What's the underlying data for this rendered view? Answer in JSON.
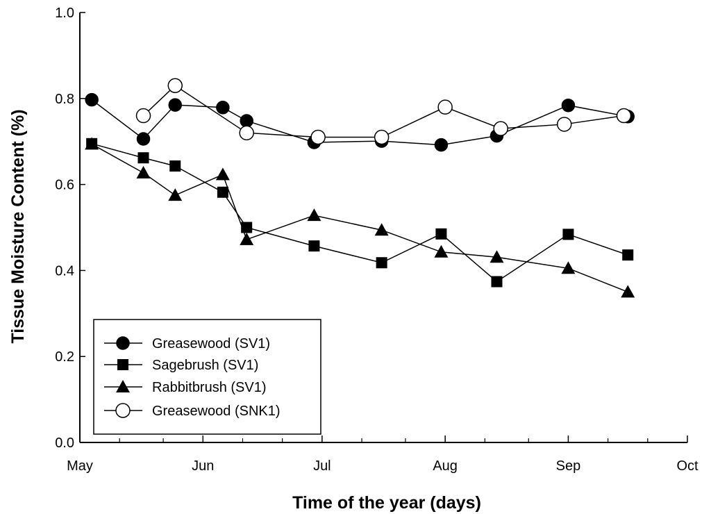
{
  "chart_data": {
    "type": "line",
    "title": "",
    "xlabel": "Time of the year (days)",
    "ylabel": "Tissue Moisture Content (%)",
    "xlim": [
      121,
      274
    ],
    "ylim": [
      0.0,
      1.0
    ],
    "x_ticks": [
      {
        "value": 121,
        "label": "May"
      },
      {
        "value": 152,
        "label": "Jun"
      },
      {
        "value": 182,
        "label": "Jul"
      },
      {
        "value": 213,
        "label": "Aug"
      },
      {
        "value": 244,
        "label": "Sep"
      },
      {
        "value": 274,
        "label": "Oct"
      }
    ],
    "x_minor_ticks": [
      131,
      142,
      162,
      172,
      192,
      203,
      223,
      234,
      254,
      264
    ],
    "y_ticks": [
      {
        "value": 0.0,
        "label": "0.0"
      },
      {
        "value": 0.2,
        "label": "0.2"
      },
      {
        "value": 0.4,
        "label": "0.4"
      },
      {
        "value": 0.6,
        "label": "0.6"
      },
      {
        "value": 0.8,
        "label": "0.8"
      },
      {
        "value": 1.0,
        "label": "1.0"
      }
    ],
    "grid": false,
    "legend_position": "bottom-left",
    "series": [
      {
        "name": "Greasewood (SV1)",
        "marker": "circle-filled",
        "points": [
          [
            124,
            0.797
          ],
          [
            137,
            0.706
          ],
          [
            145,
            0.785
          ],
          [
            157,
            0.779
          ],
          [
            163,
            0.748
          ],
          [
            180,
            0.698
          ],
          [
            197,
            0.701
          ],
          [
            212,
            0.692
          ],
          [
            226,
            0.713
          ],
          [
            244,
            0.784
          ],
          [
            259,
            0.758
          ]
        ]
      },
      {
        "name": "Sagebrush (SV1)",
        "marker": "square-filled",
        "points": [
          [
            124,
            0.695
          ],
          [
            137,
            0.662
          ],
          [
            145,
            0.643
          ],
          [
            157,
            0.582
          ],
          [
            163,
            0.5
          ],
          [
            180,
            0.457
          ],
          [
            197,
            0.418
          ],
          [
            212,
            0.485
          ],
          [
            226,
            0.374
          ],
          [
            244,
            0.484
          ],
          [
            259,
            0.436
          ]
        ]
      },
      {
        "name": "Rabbitbrush (SV1)",
        "marker": "triangle-filled",
        "points": [
          [
            124,
            0.694
          ],
          [
            137,
            0.627
          ],
          [
            145,
            0.575
          ],
          [
            157,
            0.623
          ],
          [
            163,
            0.472
          ],
          [
            180,
            0.528
          ],
          [
            197,
            0.494
          ],
          [
            212,
            0.443
          ],
          [
            226,
            0.431
          ],
          [
            244,
            0.405
          ],
          [
            259,
            0.35
          ]
        ]
      },
      {
        "name": "Greasewood (SNK1)",
        "marker": "circle-open",
        "points": [
          [
            137,
            0.76
          ],
          [
            145,
            0.83
          ],
          [
            163,
            0.72
          ],
          [
            181,
            0.71
          ],
          [
            197,
            0.71
          ],
          [
            213,
            0.78
          ],
          [
            227,
            0.73
          ],
          [
            243,
            0.74
          ],
          [
            258,
            0.76
          ]
        ]
      }
    ]
  }
}
